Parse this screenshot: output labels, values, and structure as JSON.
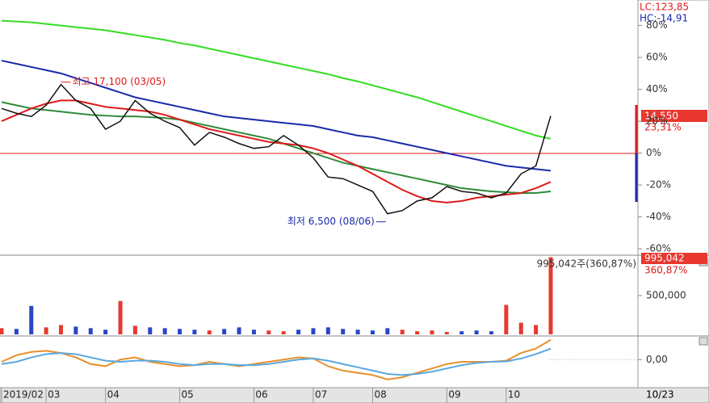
{
  "chart_data": [
    {
      "type": "line",
      "categories": [
        "2019/02",
        null,
        null,
        "03",
        null,
        null,
        null,
        "04",
        null,
        null,
        null,
        null,
        "05",
        null,
        null,
        null,
        null,
        "06",
        null,
        null,
        null,
        "07",
        null,
        null,
        null,
        "08",
        null,
        null,
        null,
        null,
        "09",
        null,
        null,
        null,
        "10",
        null,
        null,
        null
      ],
      "end_date_label": "10/23",
      "ylim": [
        -64,
        96
      ],
      "yticks": [
        {
          "value": 80,
          "label": "80%"
        },
        {
          "value": 60,
          "label": "60%"
        },
        {
          "value": 40,
          "label": "40%"
        },
        {
          "value": 20,
          "label": "20%"
        },
        {
          "value": 0,
          "label": "0%"
        },
        {
          "value": -20,
          "label": "-20%"
        },
        {
          "value": -40,
          "label": "-40%"
        },
        {
          "value": -60,
          "label": "-60%"
        }
      ],
      "lc_label": "LC:123,85",
      "hc_label": "HC:-14,91",
      "last_price_label": "14,550",
      "last_change_label": "23,31%",
      "high_annotation": "최고 17,100 (03/05)",
      "low_annotation": "최저 6,500 (08/06)",
      "series": [
        {
          "color": "#33dd22",
          "values": [
            83,
            82.5,
            82,
            81,
            80,
            79,
            78,
            77,
            75.5,
            74,
            72.5,
            71,
            69,
            67.5,
            65.5,
            63.5,
            61.5,
            59.5,
            57.5,
            55.5,
            53.5,
            51.5,
            49.5,
            47,
            45,
            42.5,
            40,
            37.5,
            35,
            32,
            29,
            26,
            23,
            20,
            17,
            14,
            11,
            9
          ]
        },
        {
          "color": "#1a2aa8",
          "values": [
            58,
            56,
            54,
            52,
            50,
            47,
            44,
            41,
            38,
            35,
            33,
            31,
            29,
            27,
            25,
            23,
            22,
            21,
            20,
            19,
            18,
            17,
            15,
            13,
            11,
            10,
            8,
            6,
            4,
            2,
            0,
            -2,
            -4,
            -6,
            -8,
            -9,
            -10,
            -11
          ]
        },
        {
          "color": "#2e8b3a",
          "values": [
            32,
            30,
            28,
            27,
            26,
            25,
            24,
            23.5,
            23,
            23,
            22.5,
            22,
            21,
            19,
            17,
            15,
            13,
            11,
            9,
            6,
            3,
            0,
            -3,
            -6,
            -8,
            -10,
            -12,
            -14,
            -16,
            -18,
            -20,
            -22,
            -23,
            -24,
            -24.5,
            -25,
            -25,
            -24
          ]
        },
        {
          "color": "#dd1a1a",
          "values": [
            20,
            24,
            28,
            31,
            33,
            33,
            31,
            29,
            28,
            27,
            26,
            24,
            21,
            18,
            15,
            13,
            11,
            9,
            7,
            6,
            5,
            3,
            0,
            -4,
            -8,
            -13,
            -18,
            -23,
            -27,
            -30,
            -31,
            -30,
            -28,
            -27,
            -26,
            -25,
            -22,
            -18
          ]
        },
        {
          "color": "#111111",
          "values": [
            28,
            25,
            23,
            30,
            43,
            33,
            28,
            15,
            20,
            33,
            25,
            20,
            16,
            5,
            13,
            10,
            6,
            3,
            4,
            11,
            5,
            -3,
            -15,
            -16,
            -20,
            -24,
            -38,
            -36,
            -30,
            -28,
            -21,
            -24,
            -25,
            -28,
            -25,
            -13,
            -8,
            23.31
          ]
        }
      ]
    },
    {
      "type": "bar",
      "ylim": [
        0,
        1000000
      ],
      "yticks": [
        {
          "value": 500000,
          "label": "500,000"
        }
      ],
      "up_color": "#e8382f",
      "down_color": "#2a45c8",
      "value_label": "995,042주(360,87%)",
      "last_volume_label": "995,042",
      "last_ratio_label": "360,87%",
      "values": [
        80000,
        70000,
        367000,
        90000,
        120000,
        100000,
        80000,
        60000,
        430000,
        110000,
        90000,
        80000,
        70000,
        60000,
        50000,
        70000,
        90000,
        60000,
        50000,
        40000,
        60000,
        80000,
        90000,
        70000,
        60000,
        50000,
        80000,
        60000,
        40000,
        50000,
        30000,
        40000,
        50000,
        40000,
        380000,
        150000,
        120000,
        995042
      ]
    },
    {
      "type": "line",
      "ylim": [
        -1.2,
        1.0
      ],
      "yticks": [
        {
          "value": 0,
          "label": "0,00"
        }
      ],
      "series": [
        {
          "color": "#e8902a",
          "values": [
            -0.1,
            0.2,
            0.35,
            0.4,
            0.3,
            0.1,
            -0.2,
            -0.3,
            0.0,
            0.1,
            -0.1,
            -0.2,
            -0.3,
            -0.25,
            -0.1,
            -0.2,
            -0.3,
            -0.2,
            -0.1,
            0.0,
            0.1,
            0.05,
            -0.3,
            -0.5,
            -0.6,
            -0.7,
            -0.9,
            -0.8,
            -0.6,
            -0.4,
            -0.2,
            -0.1,
            -0.1,
            -0.1,
            -0.05,
            0.3,
            0.5,
            0.9
          ]
        },
        {
          "color": "#5aa8e0",
          "values": [
            -0.2,
            -0.1,
            0.1,
            0.25,
            0.3,
            0.25,
            0.1,
            -0.05,
            -0.1,
            -0.05,
            -0.05,
            -0.1,
            -0.2,
            -0.25,
            -0.2,
            -0.2,
            -0.25,
            -0.25,
            -0.2,
            -0.1,
            0.0,
            0.05,
            -0.05,
            -0.2,
            -0.35,
            -0.5,
            -0.65,
            -0.7,
            -0.65,
            -0.55,
            -0.4,
            -0.25,
            -0.15,
            -0.1,
            -0.08,
            0.05,
            0.25,
            0.5
          ]
        }
      ]
    }
  ]
}
